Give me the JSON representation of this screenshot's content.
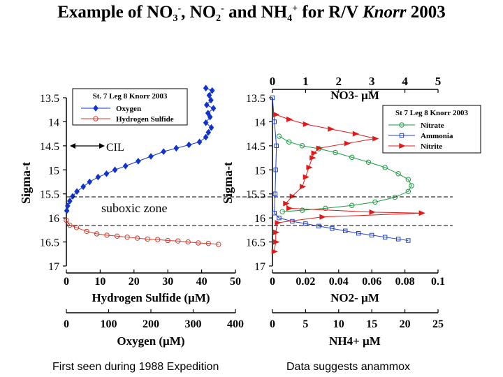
{
  "title": {
    "p1": "Example of NO",
    "s1": "3",
    "e1": "-",
    "p2": ", NO",
    "s2": "2",
    "e2": "-",
    "p3": " and NH",
    "s3": "4",
    "e3": "+",
    "p4": " for R/V ",
    "italic": "Knorr",
    "p5": " 2003"
  },
  "footnotes": {
    "left": "First seen during 1988 Expedition",
    "right": "Data suggests anammox"
  },
  "annotations": {
    "cil": "CIL",
    "suboxic": "suboxic zone"
  },
  "colors": {
    "oxygen": "#1133cc",
    "h2s": "#d03a2a",
    "nitrate": "#1a9b40",
    "ammonia": "#2040d0",
    "nitrite": "#e01a1a"
  },
  "chart_data": [
    {
      "type": "scatter",
      "ylabel": "Sigma-t",
      "ylim": [
        13.5,
        17
      ],
      "y_ticks": [
        "13.5",
        "14",
        "14.5",
        "15",
        "15.5",
        "16",
        "16.5",
        "17"
      ],
      "legend": {
        "title": "St. 7 Leg 8 Knorr 2003",
        "placement": "top-right"
      },
      "x_axes": [
        {
          "label": "Hydrogen Sulfide (µM)",
          "lim": [
            0,
            50
          ],
          "ticks": [
            "0",
            "10",
            "20",
            "30",
            "40",
            "50"
          ]
        },
        {
          "label": "Oxygen (µM)",
          "lim": [
            0,
            400
          ],
          "ticks": [
            "0",
            "100",
            "200",
            "300",
            "400"
          ]
        }
      ],
      "series": [
        {
          "name": "Oxygen",
          "axis": 1,
          "marker": "diamond",
          "points": [
            [
              330,
              13.3
            ],
            [
              345,
              13.35
            ],
            [
              338,
              13.45
            ],
            [
              342,
              13.55
            ],
            [
              332,
              13.65
            ],
            [
              348,
              13.72
            ],
            [
              335,
              13.82
            ],
            [
              340,
              13.9
            ],
            [
              330,
              14.02
            ],
            [
              343,
              14.12
            ],
            [
              336,
              14.22
            ],
            [
              330,
              14.32
            ],
            [
              315,
              14.42
            ],
            [
              290,
              14.48
            ],
            [
              260,
              14.55
            ],
            [
              230,
              14.62
            ],
            [
              200,
              14.72
            ],
            [
              170,
              14.82
            ],
            [
              140,
              14.92
            ],
            [
              115,
              15.0
            ],
            [
              95,
              15.08
            ],
            [
              75,
              15.15
            ],
            [
              55,
              15.25
            ],
            [
              40,
              15.35
            ],
            [
              25,
              15.45
            ],
            [
              15,
              15.55
            ],
            [
              8,
              15.65
            ],
            [
              3,
              15.75
            ],
            [
              1,
              15.85
            ]
          ]
        },
        {
          "name": "Hydrogen Sulfide",
          "axis": 0,
          "marker": "circle",
          "points": [
            [
              0,
              16.05
            ],
            [
              1,
              16.15
            ],
            [
              3,
              16.2
            ],
            [
              6,
              16.28
            ],
            [
              9,
              16.33
            ],
            [
              12,
              16.36
            ],
            [
              15,
              16.38
            ],
            [
              18,
              16.4
            ],
            [
              21,
              16.42
            ],
            [
              24,
              16.44
            ],
            [
              27,
              16.45
            ],
            [
              30,
              16.47
            ],
            [
              33,
              16.48
            ],
            [
              36,
              16.5
            ],
            [
              39,
              16.52
            ],
            [
              42,
              16.53
            ],
            [
              45,
              16.55
            ]
          ]
        }
      ]
    },
    {
      "type": "scatter",
      "ylabel": "Sigma-t",
      "ylim": [
        13.5,
        17
      ],
      "y_ticks": [
        "13.5",
        "14",
        "14.5",
        "15",
        "15.5",
        "16",
        "16.5",
        "17"
      ],
      "legend": {
        "title": "St 7 Leg 8 Knorr 2003",
        "placement": "top-right"
      },
      "x_axes": [
        {
          "label": "NO3- µM",
          "lim": [
            0,
            5
          ],
          "ticks": [
            "0",
            "1",
            "2",
            "3",
            "4",
            "5"
          ],
          "side": "top"
        },
        {
          "label": "NO2- µM",
          "lim": [
            0,
            0.1
          ],
          "ticks": [
            "0",
            "0.02",
            "0.04",
            "0.06",
            "0.08",
            "0.1"
          ]
        },
        {
          "label": "NH4+ µM",
          "lim": [
            0,
            25
          ],
          "ticks": [
            "0",
            "5",
            "10",
            "15",
            "20",
            "25"
          ]
        }
      ],
      "series": [
        {
          "name": "Nitrate",
          "axis": 0,
          "marker": "circle",
          "points": [
            [
              0.2,
              14.3
            ],
            [
              0.5,
              14.42
            ],
            [
              0.9,
              14.5
            ],
            [
              1.4,
              14.56
            ],
            [
              1.9,
              14.64
            ],
            [
              2.4,
              14.74
            ],
            [
              2.9,
              14.84
            ],
            [
              3.4,
              14.95
            ],
            [
              3.8,
              15.08
            ],
            [
              4.1,
              15.2
            ],
            [
              4.2,
              15.33
            ],
            [
              4.1,
              15.45
            ],
            [
              3.7,
              15.57
            ],
            [
              3.1,
              15.67
            ],
            [
              2.4,
              15.74
            ],
            [
              1.6,
              15.8
            ],
            [
              0.9,
              15.84
            ],
            [
              0.3,
              15.87
            ]
          ]
        },
        {
          "name": "Ammonia",
          "axis": 2,
          "marker": "square",
          "points": [
            [
              0,
              13.5
            ],
            [
              0.3,
              14.0
            ],
            [
              0.6,
              14.5
            ],
            [
              0.5,
              15.0
            ],
            [
              0.4,
              15.5
            ],
            [
              0.3,
              15.9
            ],
            [
              1,
              16.0
            ],
            [
              3,
              16.07
            ],
            [
              5,
              16.12
            ],
            [
              7,
              16.17
            ],
            [
              9,
              16.22
            ],
            [
              11,
              16.27
            ],
            [
              13,
              16.32
            ],
            [
              15,
              16.36
            ],
            [
              17,
              16.4
            ],
            [
              19,
              16.44
            ],
            [
              20.5,
              16.47
            ]
          ]
        },
        {
          "name": "Nitrite",
          "axis": 1,
          "marker": "triangle",
          "points": [
            [
              0.002,
              13.85
            ],
            [
              0.01,
              13.95
            ],
            [
              0.02,
              14.05
            ],
            [
              0.035,
              14.15
            ],
            [
              0.05,
              14.25
            ],
            [
              0.062,
              14.35
            ],
            [
              0.045,
              14.45
            ],
            [
              0.028,
              14.55
            ],
            [
              0.025,
              14.65
            ],
            [
              0.024,
              14.75
            ],
            [
              0.022,
              14.95
            ],
            [
              0.02,
              15.15
            ],
            [
              0.018,
              15.35
            ],
            [
              0.012,
              15.55
            ],
            [
              0.008,
              15.7
            ],
            [
              0.01,
              15.8
            ],
            [
              0.06,
              15.88
            ],
            [
              0.09,
              15.9
            ],
            [
              0.03,
              15.98
            ],
            [
              0.003,
              16.1
            ],
            [
              0.002,
              16.3
            ],
            [
              0.002,
              16.5
            ],
            [
              0.001,
              16.7
            ]
          ]
        }
      ]
    }
  ]
}
